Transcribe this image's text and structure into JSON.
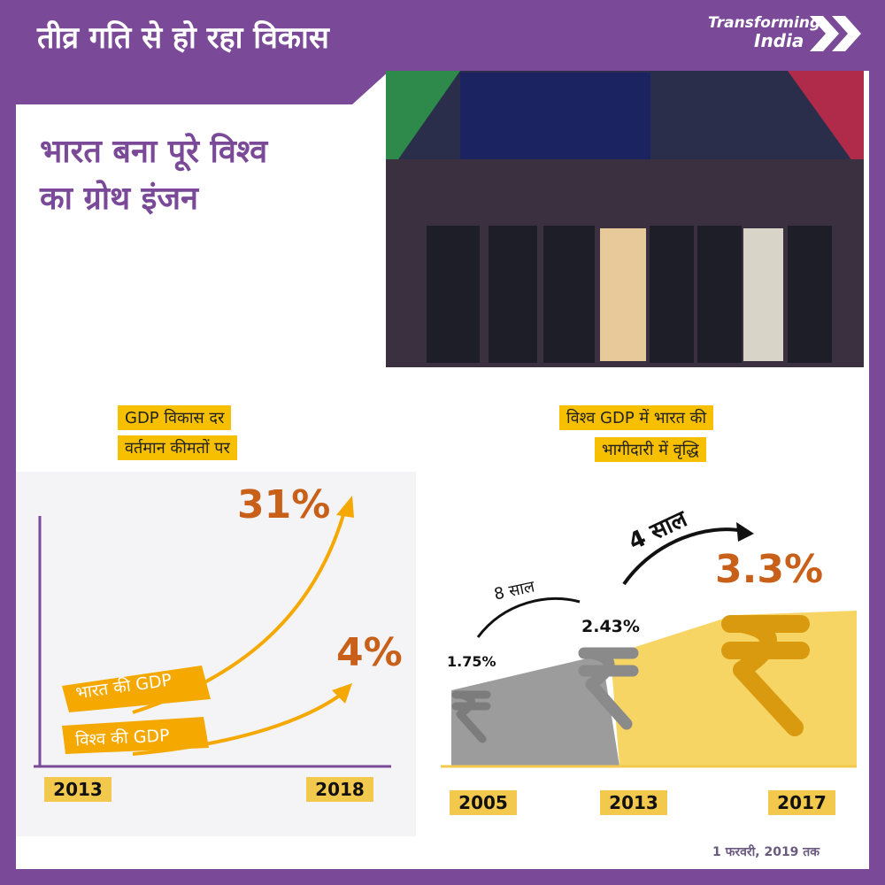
{
  "header": {
    "title": "तीव्र गति से हो रहा विकास",
    "brand": [
      "Transforming",
      "India"
    ]
  },
  "hero": {
    "title": [
      "भारत बना पूरे विश्व",
      "का ग्रोथ इंजन"
    ]
  },
  "gdp_growth": {
    "heading": [
      "GDP विकास दर",
      "वर्तमान कीमतों पर"
    ],
    "series": [
      {
        "name": "भारत की GDP",
        "value": "31%"
      },
      {
        "name": "विश्व की GDP",
        "value": "4%"
      }
    ],
    "years": [
      "2013",
      "2018"
    ]
  },
  "gdp_share": {
    "heading": [
      "विश्व GDP में भारत की",
      "भागीदारी में वृद्धि"
    ],
    "intervals": [
      "8 साल",
      "4 साल"
    ],
    "points": [
      {
        "year": "2005",
        "value": "1.75%"
      },
      {
        "year": "2013",
        "value": "2.43%"
      },
      {
        "year": "2017",
        "value": "3.3%"
      }
    ]
  },
  "footer": {
    "note": "1 फरवरी, 2019 तक"
  }
}
